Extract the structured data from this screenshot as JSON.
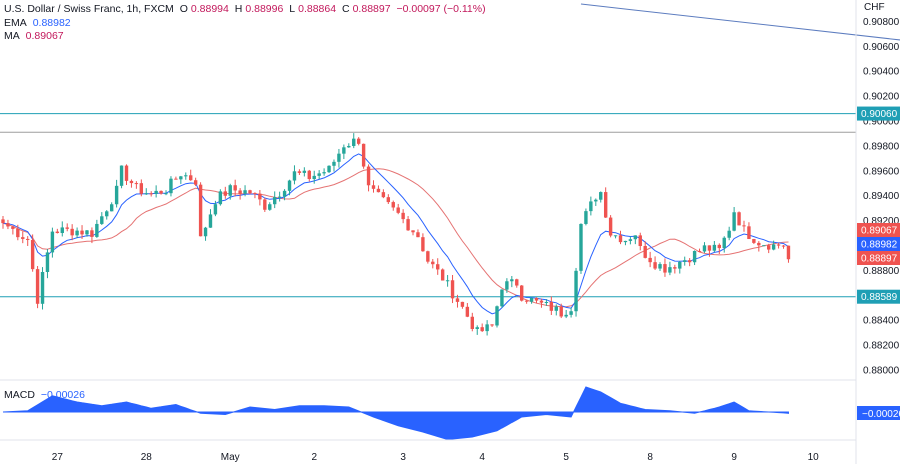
{
  "legend": {
    "symbol": "U.S. Dollar / Swiss Franc, 1h, FXCM",
    "o_label": "O",
    "o": "0.88994",
    "h_label": "H",
    "h": "0.88996",
    "l_label": "L",
    "l": "0.88864",
    "c_label": "C",
    "c": "0.88897",
    "change": "−0.00097 (−0.11%)",
    "ema_label": "EMA",
    "ema": "0.88982",
    "ma_label": "MA",
    "ma": "0.89067"
  },
  "currency": "CHF",
  "macd": {
    "label": "MACD",
    "value": "−0.00026"
  },
  "colors": {
    "up": "#26a69a",
    "down": "#ef5350",
    "ema": "#2962ff",
    "ma": "#e57373",
    "level": "#1f9fb5",
    "macd_fill": "#2962ff",
    "badge_ma": "#ef5350",
    "badge_ema": "#2962ff",
    "badge_close": "#ef5350"
  },
  "chart_data": {
    "type": "candlestick",
    "y_range": [
      0.8792,
      0.9094
    ],
    "y_ticks": [
      "0.90800",
      "0.90600",
      "0.90400",
      "0.90200",
      "0.90000",
      "0.89800",
      "0.89600",
      "0.89400",
      "0.89200",
      "0.89000",
      "0.88800",
      "0.88600",
      "0.88400",
      "0.88200",
      "0.88000"
    ],
    "y_tick_values": [
      0.908,
      0.906,
      0.904,
      0.902,
      0.9,
      0.898,
      0.896,
      0.894,
      0.892,
      0.89,
      0.888,
      0.886,
      0.884,
      0.882,
      0.88
    ],
    "x_labels": [
      "27",
      "28",
      "May",
      "2",
      "3",
      "4",
      "5",
      "8",
      "9",
      "10"
    ],
    "x_label_candle_index": [
      11,
      29,
      46,
      63,
      81,
      97,
      114,
      131,
      148,
      164
    ],
    "candle_count": 170,
    "levels": [
      {
        "label": "0.90060",
        "value": 0.9006
      },
      {
        "label": "0.88589",
        "value": 0.88589
      }
    ],
    "resistance_value": 0.8991,
    "trendline": {
      "from_candle": 117,
      "from_value": 0.9094,
      "to_candle": 183,
      "to_value": 0.90645
    },
    "badges": [
      {
        "label": "0.89067",
        "value": 0.89067,
        "kind": "ma"
      },
      {
        "label": "0.88982",
        "value": 0.88982,
        "kind": "ema"
      },
      {
        "label": "0.88897",
        "value": 0.88897,
        "kind": "close"
      }
    ],
    "anchors": [
      [
        0,
        0.8918
      ],
      [
        5,
        0.8905
      ],
      [
        7,
        0.8857
      ],
      [
        10,
        0.8912
      ],
      [
        15,
        0.8912
      ],
      [
        18,
        0.891
      ],
      [
        23,
        0.8944
      ],
      [
        24,
        0.896
      ],
      [
        27,
        0.8946
      ],
      [
        30,
        0.8941
      ],
      [
        33,
        0.8945
      ],
      [
        36,
        0.8958
      ],
      [
        39,
        0.8952
      ],
      [
        40,
        0.8905
      ],
      [
        43,
        0.8937
      ],
      [
        46,
        0.8945
      ],
      [
        50,
        0.8943
      ],
      [
        53,
        0.8932
      ],
      [
        56,
        0.8943
      ],
      [
        59,
        0.8958
      ],
      [
        62,
        0.8955
      ],
      [
        66,
        0.8961
      ],
      [
        69,
        0.8981
      ],
      [
        72,
        0.8985
      ],
      [
        74,
        0.8946
      ],
      [
        77,
        0.8935
      ],
      [
        80,
        0.8925
      ],
      [
        84,
        0.8908
      ],
      [
        86,
        0.8888
      ],
      [
        89,
        0.8874
      ],
      [
        93,
        0.885
      ],
      [
        96,
        0.883
      ],
      [
        99,
        0.8835
      ],
      [
        101,
        0.8868
      ],
      [
        104,
        0.887
      ],
      [
        105,
        0.886
      ],
      [
        108,
        0.8854
      ],
      [
        111,
        0.885
      ],
      [
        113,
        0.8846
      ],
      [
        115,
        0.8851
      ],
      [
        117,
        0.8917
      ],
      [
        120,
        0.894
      ],
      [
        121,
        0.8943
      ],
      [
        123,
        0.891
      ],
      [
        126,
        0.8905
      ],
      [
        128,
        0.891
      ],
      [
        129,
        0.8897
      ],
      [
        132,
        0.8886
      ],
      [
        134,
        0.8882
      ],
      [
        136,
        0.8885
      ],
      [
        139,
        0.8891
      ],
      [
        142,
        0.8898
      ],
      [
        145,
        0.8896
      ],
      [
        147,
        0.8914
      ],
      [
        148,
        0.8928
      ],
      [
        150,
        0.8912
      ],
      [
        153,
        0.8903
      ],
      [
        156,
        0.89
      ],
      [
        158,
        0.8901
      ],
      [
        159,
        0.8889
      ]
    ],
    "macd_anchors": [
      [
        0,
        0.0
      ],
      [
        5,
        0.1
      ],
      [
        10,
        1.3
      ],
      [
        15,
        0.8
      ],
      [
        20,
        0.5
      ],
      [
        25,
        0.8
      ],
      [
        30,
        0.3
      ],
      [
        35,
        0.6
      ],
      [
        40,
        -0.1
      ],
      [
        45,
        -0.2
      ],
      [
        50,
        0.4
      ],
      [
        55,
        0.2
      ],
      [
        60,
        0.5
      ],
      [
        65,
        0.5
      ],
      [
        70,
        0.4
      ],
      [
        75,
        -0.4
      ],
      [
        80,
        -1.1
      ],
      [
        85,
        -1.6
      ],
      [
        90,
        -2.2
      ],
      [
        95,
        -2.0
      ],
      [
        100,
        -1.5
      ],
      [
        105,
        -0.4
      ],
      [
        110,
        -0.2
      ],
      [
        115,
        -0.4
      ],
      [
        118,
        2.0
      ],
      [
        121,
        1.6
      ],
      [
        125,
        0.7
      ],
      [
        130,
        0.2
      ],
      [
        135,
        0.1
      ],
      [
        140,
        -0.1
      ],
      [
        145,
        0.4
      ],
      [
        148,
        0.8
      ],
      [
        151,
        0.1
      ],
      [
        159,
        -0.1
      ]
    ]
  }
}
